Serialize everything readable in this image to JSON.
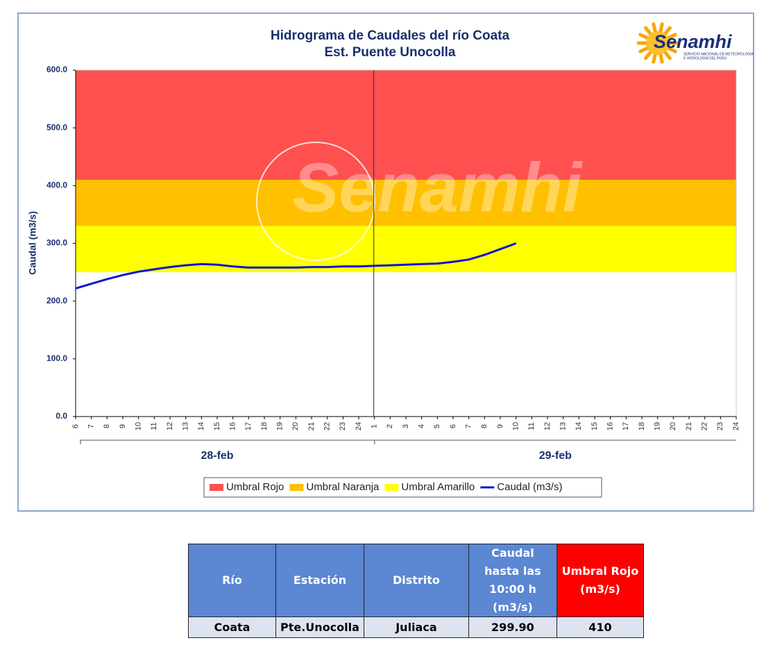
{
  "chart_data": {
    "type": "line",
    "title": [
      "Hidrograma de Caudales del río Coata",
      "Est. Puente Unocolla"
    ],
    "y_label": "Caudal (m3/s)",
    "logo": {
      "name": "Senamhi",
      "subtitle": [
        "SERVICIO NACIONAL DE METEOROLOGÍA",
        "E HIDROLOGÍA DEL PERÚ"
      ]
    },
    "categories": [
      6,
      7,
      8,
      9,
      10,
      11,
      12,
      13,
      14,
      15,
      16,
      17,
      18,
      19,
      20,
      21,
      22,
      23,
      24,
      1,
      2,
      3,
      4,
      5,
      6,
      7,
      8,
      9,
      10,
      11,
      12,
      13,
      14,
      15,
      16,
      17,
      18,
      19,
      20,
      21,
      22,
      23,
      24
    ],
    "x_groups": [
      "28-feb",
      "29-feb"
    ],
    "ylim": [
      0,
      600
    ],
    "yticks": [
      {
        "value": 0,
        "label": "0.0"
      },
      {
        "value": 100,
        "label": "100.0"
      },
      {
        "value": 200,
        "label": "200.0"
      },
      {
        "value": 300,
        "label": "300.0"
      },
      {
        "value": 400,
        "label": "400.0"
      },
      {
        "value": 500,
        "label": "500.0"
      },
      {
        "value": 600,
        "label": "600.0"
      }
    ],
    "series": [
      {
        "name": "Umbral Rojo",
        "color": "#ff5050",
        "value": 410
      },
      {
        "name": "Umbral Naranja",
        "color": "#ffc000",
        "value": 330
      },
      {
        "name": "Umbral Amarillo",
        "color": "#ffff00",
        "value": 250
      },
      {
        "name": "Caudal (m3/s)",
        "color": "#0a14d8",
        "values": [
          222,
          230,
          238,
          245,
          251,
          255,
          259,
          262,
          264,
          263,
          260,
          258,
          258,
          258,
          258,
          259,
          259,
          260,
          260,
          261,
          262,
          263,
          264,
          265,
          268,
          272,
          280,
          290,
          300,
          null,
          null,
          null,
          null,
          null,
          null,
          null,
          null,
          null,
          null,
          null,
          null,
          null,
          null
        ]
      }
    ]
  },
  "table": {
    "headers": [
      "Río",
      "Estación",
      "Distrito",
      "Caudal hasta las 10:00 h (m3/s)",
      "Umbral Rojo (m3/s)"
    ],
    "rows": [
      [
        "Coata",
        "Pte.Unocolla",
        "Juliaca",
        "299.90",
        "410"
      ]
    ]
  }
}
